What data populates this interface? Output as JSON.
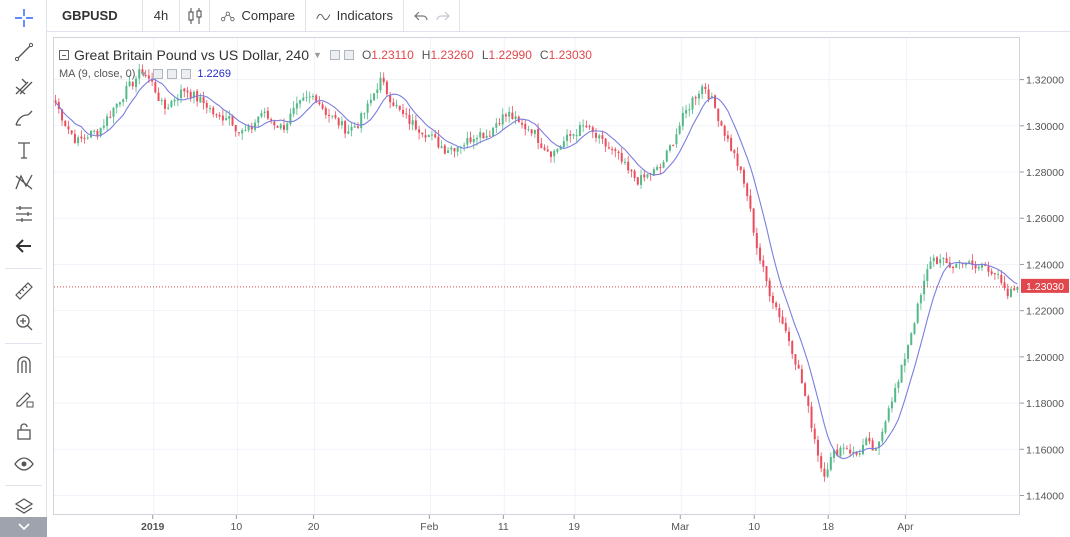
{
  "toolbar": {
    "symbol": "GBPUSD",
    "interval": "4h",
    "compare_label": "Compare",
    "indicators_label": "Indicators"
  },
  "legend": {
    "title": "Great Britain Pound vs US Dollar, 240",
    "o_key": "O",
    "o_val": "1.23110",
    "h_key": "H",
    "h_val": "1.23260",
    "l_key": "L",
    "l_val": "1.22990",
    "c_key": "C",
    "c_val": "1.23030",
    "ma_label": "MA (9, close, 0)",
    "ma_value": "1.2269"
  },
  "colors": {
    "up": "#53b987",
    "down": "#eb4d5c",
    "ma": "#7b7ee0",
    "grid": "#f0f3fa",
    "last_price": "#e0474c"
  },
  "chart_data": {
    "type": "candlestick",
    "ylim": [
      1.132,
      1.338
    ],
    "y_ticks": [
      "1.32000",
      "1.30000",
      "1.28000",
      "1.26000",
      "1.24000",
      "1.22000",
      "1.20000",
      "1.18000",
      "1.16000",
      "1.14000"
    ],
    "y_tick_values": [
      1.32,
      1.3,
      1.28,
      1.26,
      1.24,
      1.22,
      1.2,
      1.18,
      1.16,
      1.14
    ],
    "x_ticks": [
      "2019",
      "10",
      "20",
      "Feb",
      "11",
      "19",
      "Mar",
      "10",
      "18",
      "Apr"
    ],
    "last_price": 1.2303,
    "last_price_label": "1.23030",
    "close_path": [
      1.31,
      1.3,
      1.293,
      1.296,
      1.298,
      1.305,
      1.312,
      1.318,
      1.324,
      1.318,
      1.307,
      1.312,
      1.316,
      1.312,
      1.309,
      1.303,
      1.305,
      1.297,
      1.298,
      1.306,
      1.302,
      1.299,
      1.306,
      1.311,
      1.313,
      1.306,
      1.302,
      1.298,
      1.301,
      1.309,
      1.32,
      1.312,
      1.305,
      1.301,
      1.298,
      1.294,
      1.29,
      1.291,
      1.293,
      1.297,
      1.296,
      1.303,
      1.305,
      1.3,
      1.299,
      1.292,
      1.288,
      1.293,
      1.297,
      1.3,
      1.295,
      1.291,
      1.287,
      1.28,
      1.276,
      1.279,
      1.282,
      1.292,
      1.303,
      1.312,
      1.318,
      1.308,
      1.296,
      1.285,
      1.27,
      1.245,
      1.229,
      1.218,
      1.206,
      1.19,
      1.17,
      1.149,
      1.158,
      1.162,
      1.157,
      1.163,
      1.158,
      1.178,
      1.189,
      1.208,
      1.225,
      1.243,
      1.241,
      1.239,
      1.242,
      1.238,
      1.24,
      1.236,
      1.226,
      1.2303
    ]
  }
}
